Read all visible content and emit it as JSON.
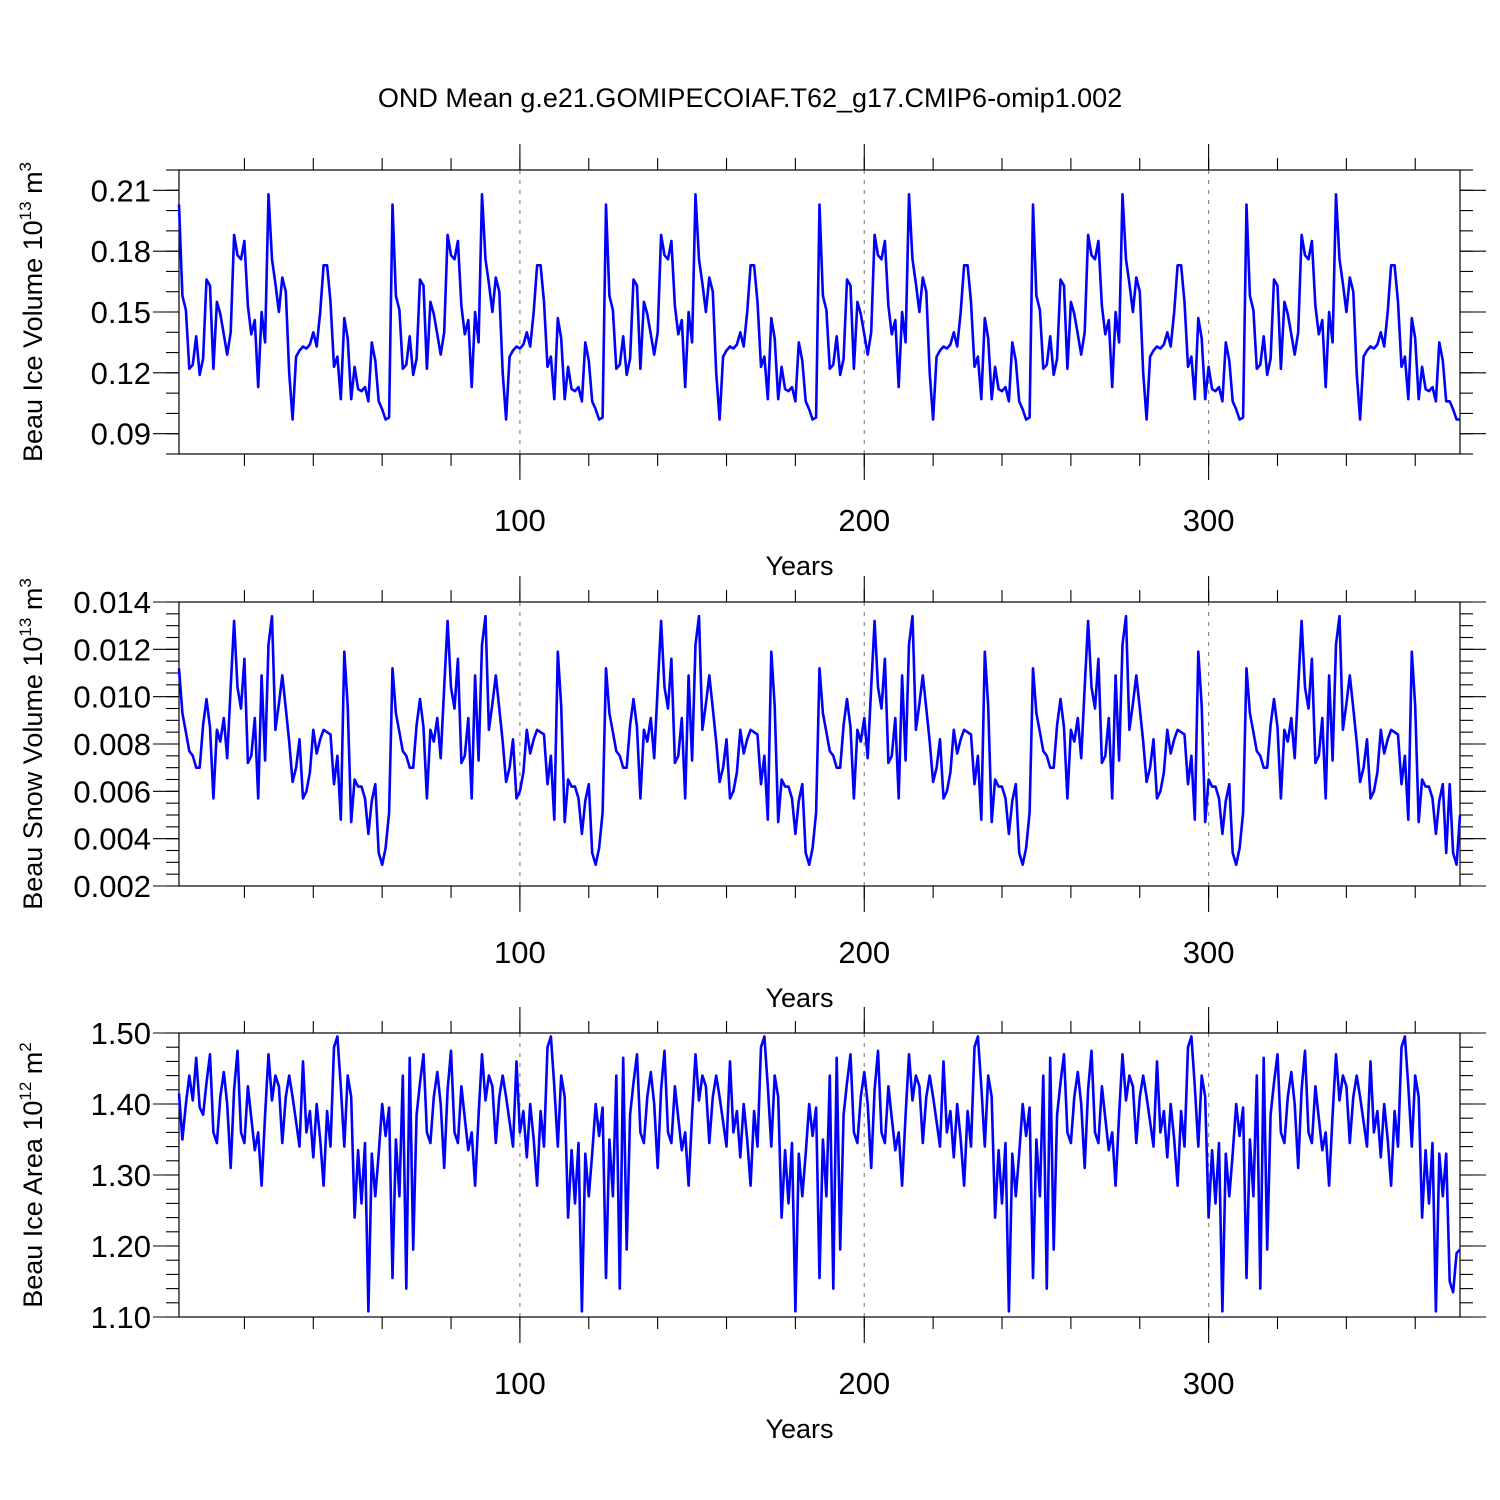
{
  "title": "OND Mean g.e21.GOMIPECOIAF.T62_g17.CMIP6-omip1.002",
  "line_color": "#0000ff",
  "chart_data": [
    {
      "type": "line",
      "name": "ice-volume",
      "ylabel": "Beau Ice Volume 10",
      "ylabel_exp": "13",
      "ylabel_unit": "m",
      "ylabel_unit_exp": "3",
      "xlabel": "Years",
      "xlim": [
        1,
        373
      ],
      "ylim": [
        0.08,
        0.22
      ],
      "xticks": [
        100,
        200,
        300
      ],
      "xtick_labels": [
        "100",
        "200",
        "300"
      ],
      "yticks": [
        0.09,
        0.12,
        0.15,
        0.18,
        0.21
      ],
      "ytick_labels": [
        "0.09",
        "0.12",
        "0.15",
        "0.18",
        "0.21"
      ],
      "x_minor_step": 20,
      "y_minor_step": 0.01,
      "vlines": [
        100,
        200,
        300
      ],
      "period": 62,
      "base": [
        0.203,
        0.158,
        0.151,
        0.122,
        0.124,
        0.138,
        0.119,
        0.127,
        0.166,
        0.163,
        0.122,
        0.155,
        0.149,
        0.139,
        0.129,
        0.14,
        0.188,
        0.178,
        0.176,
        0.185,
        0.153,
        0.139,
        0.146,
        0.113,
        0.15,
        0.135,
        0.208,
        0.176,
        0.164,
        0.15,
        0.167,
        0.16,
        0.12,
        0.097,
        0.128,
        0.131,
        0.133,
        0.132,
        0.134,
        0.14,
        0.133,
        0.15,
        0.173,
        0.173,
        0.155,
        0.123,
        0.128,
        0.107,
        0.147,
        0.137,
        0.107,
        0.123,
        0.112,
        0.111,
        0.113,
        0.106,
        0.135,
        0.126,
        0.106,
        0.102,
        0.097,
        0.098
      ],
      "tail": [
        0.106,
        0.102,
        0.097,
        0.097
      ]
    },
    {
      "type": "line",
      "name": "snow-volume",
      "ylabel": "Beau Snow Volume 10",
      "ylabel_exp": "13",
      "ylabel_unit": "m",
      "ylabel_unit_exp": "3",
      "xlabel": "Years",
      "xlim": [
        1,
        373
      ],
      "ylim": [
        0.002,
        0.014
      ],
      "xticks": [
        100,
        200,
        300
      ],
      "xtick_labels": [
        "100",
        "200",
        "300"
      ],
      "yticks": [
        0.002,
        0.004,
        0.006,
        0.008,
        0.01,
        0.012,
        0.014
      ],
      "ytick_labels": [
        "0.002",
        "0.004",
        "0.006",
        "0.008",
        "0.010",
        "0.012",
        "0.014"
      ],
      "x_minor_step": 20,
      "y_minor_step": 0.0005,
      "vlines": [
        100,
        200,
        300
      ],
      "period": 62,
      "base": [
        0.0112,
        0.0093,
        0.0085,
        0.0077,
        0.0075,
        0.007,
        0.007,
        0.0088,
        0.0099,
        0.0087,
        0.0057,
        0.0086,
        0.0081,
        0.0091,
        0.0074,
        0.0104,
        0.0132,
        0.0104,
        0.0095,
        0.0116,
        0.0072,
        0.0075,
        0.0091,
        0.0057,
        0.0109,
        0.0073,
        0.0122,
        0.0134,
        0.0086,
        0.0097,
        0.0109,
        0.0095,
        0.0081,
        0.0064,
        0.007,
        0.0082,
        0.0057,
        0.006,
        0.0068,
        0.0086,
        0.0076,
        0.0082,
        0.0086,
        0.0085,
        0.0084,
        0.0063,
        0.0075,
        0.0048,
        0.0119,
        0.0096,
        0.0047,
        0.0065,
        0.0062,
        0.0062,
        0.0057,
        0.0042,
        0.0056,
        0.0063,
        0.0034,
        0.0029,
        0.0036,
        0.0051
      ],
      "tail": [
        0.0063,
        0.0034,
        0.0029,
        0.005
      ]
    },
    {
      "type": "line",
      "name": "ice-area",
      "ylabel": "Beau Ice Area 10",
      "ylabel_exp": "12",
      "ylabel_unit": "m",
      "ylabel_unit_exp": "2",
      "xlabel": "Years",
      "xlim": [
        1,
        373
      ],
      "ylim": [
        1.1,
        1.5
      ],
      "xticks": [
        100,
        200,
        300
      ],
      "xtick_labels": [
        "100",
        "200",
        "300"
      ],
      "yticks": [
        1.1,
        1.2,
        1.3,
        1.4,
        1.5
      ],
      "ytick_labels": [
        "1.10",
        "1.20",
        "1.30",
        "1.40",
        "1.50"
      ],
      "x_minor_step": 20,
      "y_minor_step": 0.02,
      "vlines": [
        100,
        200,
        300
      ],
      "period": 62,
      "base": [
        1.415,
        1.35,
        1.4,
        1.44,
        1.405,
        1.465,
        1.395,
        1.385,
        1.43,
        1.47,
        1.36,
        1.345,
        1.41,
        1.445,
        1.4,
        1.31,
        1.42,
        1.475,
        1.36,
        1.345,
        1.425,
        1.38,
        1.335,
        1.36,
        1.285,
        1.385,
        1.47,
        1.405,
        1.44,
        1.425,
        1.345,
        1.41,
        1.44,
        1.41,
        1.375,
        1.34,
        1.46,
        1.36,
        1.39,
        1.325,
        1.4,
        1.35,
        1.285,
        1.39,
        1.34,
        1.48,
        1.495,
        1.425,
        1.34,
        1.44,
        1.41,
        1.385,
        1.335,
        1.395,
        1.345,
        1.36,
        1.33,
        1.27,
        1.33,
        1.4,
        1.36,
        1.395
      ],
      "tail": [
        1.15,
        1.135,
        1.19,
        1.195
      ],
      "dips": [
        [
          52,
          1.24
        ],
        [
          54,
          1.26
        ],
        [
          56,
          1.108
        ],
        [
          61,
          1.355
        ],
        [
          63,
          1.155
        ],
        [
          65,
          1.27
        ],
        [
          67,
          1.14
        ],
        [
          69,
          1.195
        ]
      ]
    }
  ]
}
